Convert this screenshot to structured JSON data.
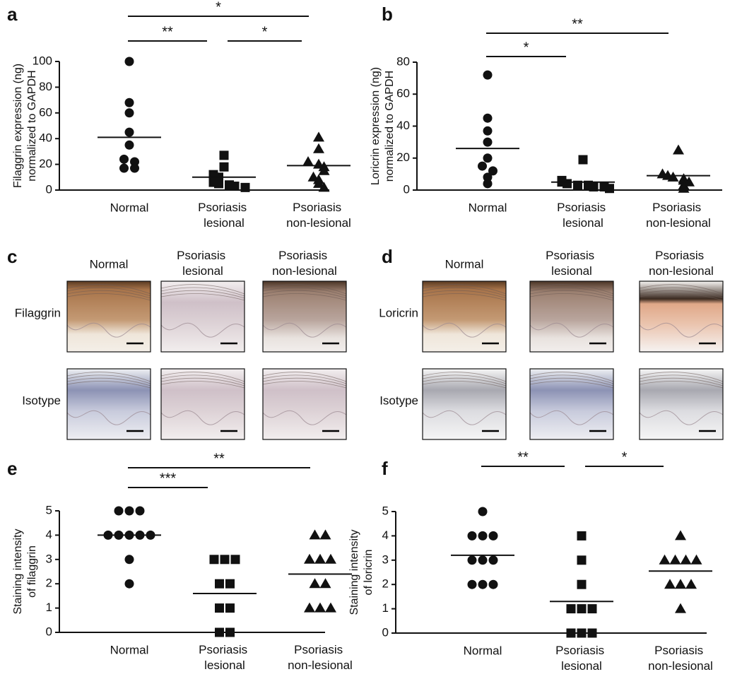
{
  "chart_data": [
    {
      "type": "dot",
      "panel_label": "a",
      "ylabel": [
        "Filaggrin expression (ng)",
        "normalized to GAPDH"
      ],
      "categories": [
        "Normal",
        "Psoriasis lesional",
        "Psoriasis non-lesional"
      ],
      "markers": [
        "circle",
        "square",
        "triangle"
      ],
      "color": "#111111",
      "values": [
        [
          100,
          68,
          60,
          45,
          35,
          24,
          22,
          17,
          17
        ],
        [
          27,
          18,
          12,
          10,
          8,
          6,
          5,
          4,
          3,
          2
        ],
        [
          41,
          32,
          22,
          20,
          18,
          15,
          10,
          8,
          5,
          2
        ]
      ],
      "means": [
        41,
        10,
        19
      ],
      "ylim": [
        0,
        100
      ],
      "yticks": [
        0,
        20,
        40,
        60,
        80,
        100
      ],
      "significance": [
        {
          "between": [
            0,
            1
          ],
          "label": "**"
        },
        {
          "between": [
            1,
            2
          ],
          "label": "*"
        },
        {
          "between": [
            0,
            2
          ],
          "label": "*"
        }
      ]
    },
    {
      "type": "dot",
      "panel_label": "b",
      "ylabel": [
        "Loricrin expression (ng)",
        "normalized to GAPDH"
      ],
      "categories": [
        "Normal",
        "Psoriasis lesional",
        "Psoriasis non-lesional"
      ],
      "markers": [
        "circle",
        "square",
        "triangle"
      ],
      "color": "#111111",
      "values": [
        [
          72,
          45,
          37,
          30,
          20,
          15,
          12,
          8,
          4
        ],
        [
          19,
          6,
          5,
          4,
          3,
          3,
          2,
          2,
          1
        ],
        [
          25,
          10,
          9,
          8,
          7,
          6,
          5,
          3,
          1
        ]
      ],
      "means": [
        26,
        5,
        9
      ],
      "ylim": [
        0,
        80
      ],
      "yticks": [
        0,
        20,
        40,
        60,
        80
      ],
      "significance": [
        {
          "between": [
            0,
            1
          ],
          "label": "*"
        },
        {
          "between": [
            0,
            2
          ],
          "label": "**"
        }
      ]
    },
    {
      "type": "dot",
      "panel_label": "e",
      "ylabel": [
        "Staining intensity",
        "of filaggrin"
      ],
      "categories": [
        "Normal",
        "Psoriasis lesional",
        "Psoriasis non-lesional"
      ],
      "markers": [
        "circle",
        "square",
        "triangle"
      ],
      "color": "#111111",
      "values": [
        [
          5,
          5,
          5,
          4,
          4,
          4,
          4,
          4,
          3,
          2
        ],
        [
          3,
          3,
          3,
          2,
          2,
          1,
          1,
          0,
          0
        ],
        [
          4,
          4,
          3,
          3,
          3,
          2,
          2,
          1,
          1,
          1
        ]
      ],
      "means": [
        4,
        1.6,
        2.4
      ],
      "ylim": [
        0,
        5
      ],
      "yticks": [
        0,
        1,
        2,
        3,
        4,
        5
      ],
      "significance": [
        {
          "between": [
            0,
            1
          ],
          "label": "***"
        },
        {
          "between": [
            0,
            2
          ],
          "label": "**"
        }
      ]
    },
    {
      "type": "dot",
      "panel_label": "f",
      "ylabel": [
        "Staining intensity",
        "of loricrin"
      ],
      "categories": [
        "Normal",
        "Psoriasis lesional",
        "Psoriasis non-lesional"
      ],
      "markers": [
        "circle",
        "square",
        "triangle"
      ],
      "color": "#111111",
      "values": [
        [
          5,
          4,
          4,
          4,
          3,
          3,
          3,
          2,
          2,
          2
        ],
        [
          4,
          3,
          2,
          1,
          1,
          1,
          0,
          0,
          0
        ],
        [
          4,
          3,
          3,
          3,
          3,
          2,
          2,
          2,
          1
        ]
      ],
      "means": [
        3.2,
        1.3,
        2.55
      ],
      "ylim": [
        0,
        5
      ],
      "yticks": [
        0,
        1,
        2,
        3,
        4,
        5
      ],
      "significance": [
        {
          "between": [
            0,
            1
          ],
          "label": "**"
        },
        {
          "between": [
            1,
            2
          ],
          "label": "*"
        }
      ]
    }
  ],
  "image_panels": [
    {
      "panel_label": "c",
      "columns": [
        "Normal",
        "Psoriasis lesional",
        "Psoriasis non-lesional"
      ],
      "rows": [
        "Filaggrin",
        "Isotype"
      ]
    },
    {
      "panel_label": "d",
      "columns": [
        "Normal",
        "Psoriasis lesional",
        "Psoriasis non-lesional"
      ],
      "rows": [
        "Loricrin",
        "Isotype"
      ]
    }
  ]
}
